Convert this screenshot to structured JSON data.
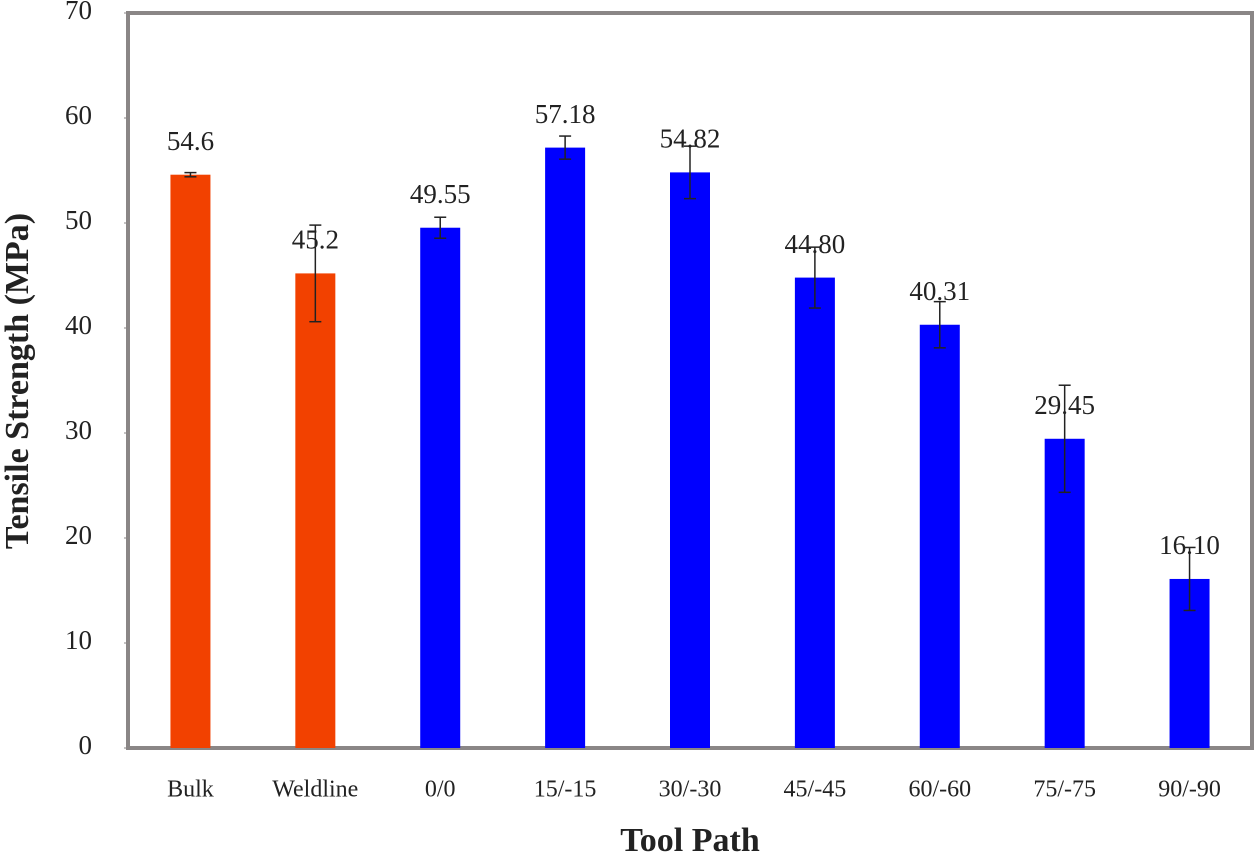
{
  "chart_data": {
    "type": "bar",
    "x_label": "Tool Path",
    "y_label": "Tensile Strength (MPa)",
    "categories": [
      "Bulk",
      "Weldline",
      "0/0",
      "15/-15",
      "30/-30",
      "45/-45",
      "60/-60",
      "75/-75",
      "90/-90"
    ],
    "values": [
      54.6,
      45.2,
      49.55,
      57.18,
      54.82,
      44.8,
      40.31,
      29.45,
      16.1
    ],
    "value_labels": [
      "54.6",
      "45.2",
      "49.55",
      "57.18",
      "54.82",
      "44.80",
      "40.31",
      "29.45",
      "16.10"
    ],
    "errors": [
      0.2,
      4.6,
      1.0,
      1.1,
      2.5,
      2.9,
      2.2,
      5.1,
      3.0
    ],
    "colors": [
      "#f24100",
      "#f24100",
      "#0000ff",
      "#0000ff",
      "#0000ff",
      "#0000ff",
      "#0000ff",
      "#0000ff",
      "#0000ff"
    ],
    "ylim": [
      0,
      70
    ],
    "yticks": [
      0,
      10,
      20,
      30,
      40,
      50,
      60,
      70
    ],
    "grid": false
  }
}
